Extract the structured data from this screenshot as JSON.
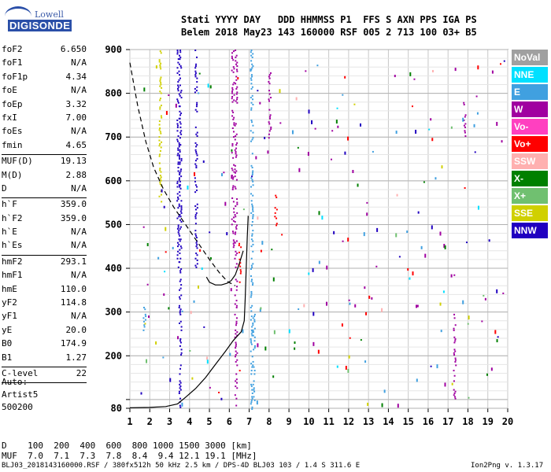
{
  "header": {
    "labels": "Stati YYYY DAY   DDD HHMMSS P1  FFS S AXN PPS IGA PS",
    "values": "Belem 2018 May23 143 160000 RSF 005 2 713 100 03+ B5"
  },
  "logo": {
    "text_top": "Lowell",
    "text_bottom": "DIGISONDE"
  },
  "params": [
    {
      "k": "foF2",
      "v": "6.650"
    },
    {
      "k": "foF1",
      "v": "N/A"
    },
    {
      "k": "foF1p",
      "v": "4.34"
    },
    {
      "k": "foE",
      "v": "N/A"
    },
    {
      "k": "foEp",
      "v": "3.32"
    },
    {
      "k": "fxI",
      "v": "7.00"
    },
    {
      "k": "foEs",
      "v": "N/A"
    },
    {
      "k": "fmin",
      "v": "4.65"
    },
    {
      "k": "MUF(D)",
      "v": "19.13"
    },
    {
      "k": "M(D)",
      "v": "2.88"
    },
    {
      "k": "D",
      "v": "N/A"
    },
    {
      "k": "h`F",
      "v": "359.0"
    },
    {
      "k": "h`F2",
      "v": "359.0"
    },
    {
      "k": "h`E",
      "v": "N/A"
    },
    {
      "k": "h`Es",
      "v": "N/A"
    },
    {
      "k": "hmF2",
      "v": "293.1"
    },
    {
      "k": "hmF1",
      "v": "N/A"
    },
    {
      "k": "hmE",
      "v": "110.0"
    },
    {
      "k": "yF2",
      "v": "114.8"
    },
    {
      "k": "yF1",
      "v": "N/A"
    },
    {
      "k": "yE",
      "v": "20.0"
    },
    {
      "k": "B0",
      "v": "174.9"
    },
    {
      "k": "B1",
      "v": "1.27"
    },
    {
      "k": "C-level",
      "v": "22"
    }
  ],
  "auto": [
    "Auto:",
    "Artist5",
    "500200"
  ],
  "legend": [
    {
      "label": "NoVal",
      "color": "#a0a0a0"
    },
    {
      "label": "NNE",
      "color": "#00e0ff"
    },
    {
      "label": "E",
      "color": "#40a0e0"
    },
    {
      "label": "W",
      "color": "#a000a0"
    },
    {
      "label": "Vo-",
      "color": "#ff40c0"
    },
    {
      "label": "Vo+",
      "color": "#ff0000"
    },
    {
      "label": "SSW",
      "color": "#ffb0b0"
    },
    {
      "label": "X-",
      "color": "#008000"
    },
    {
      "label": "X+",
      "color": "#70c070"
    },
    {
      "label": "SSE",
      "color": "#d0d000"
    },
    {
      "label": "NNW",
      "color": "#2000c0"
    }
  ],
  "chart_data": {
    "type": "scatter",
    "xlabel": "",
    "ylabel": "",
    "xlim": [
      1,
      20
    ],
    "ylim": [
      80,
      900
    ],
    "x_ticks": [
      1,
      2,
      3,
      4,
      5,
      6,
      7,
      8,
      9,
      10,
      11,
      12,
      13,
      14,
      15,
      16,
      17,
      18,
      19,
      20
    ],
    "y_ticks": [
      80,
      100,
      200,
      300,
      400,
      500,
      600,
      700,
      800,
      900
    ],
    "y_tick_labels_shown": [
      80,
      200,
      300,
      400,
      500,
      600,
      700,
      800,
      900
    ],
    "grid": true,
    "curves": [
      {
        "name": "",
        "style": "dashed",
        "points": [
          [
            1.0,
            870
          ],
          [
            1.4,
            770
          ],
          [
            1.8,
            690
          ],
          [
            2.2,
            630
          ],
          [
            2.7,
            580
          ],
          [
            3.2,
            540
          ],
          [
            3.8,
            500
          ],
          [
            4.4,
            460
          ],
          [
            5.0,
            420
          ],
          [
            5.5,
            390
          ],
          [
            5.9,
            370
          ],
          [
            6.3,
            360
          ]
        ]
      },
      {
        "name": "",
        "style": "solid",
        "points": [
          [
            1.0,
            81
          ],
          [
            2.0,
            82
          ],
          [
            2.8,
            84
          ],
          [
            3.4,
            90
          ],
          [
            3.8,
            105
          ],
          [
            4.3,
            125
          ],
          [
            4.8,
            150
          ],
          [
            5.3,
            180
          ],
          [
            5.8,
            210
          ],
          [
            6.2,
            235
          ],
          [
            6.6,
            255
          ],
          [
            6.75,
            280
          ],
          [
            6.8,
            330
          ],
          [
            6.85,
            400
          ],
          [
            6.9,
            470
          ],
          [
            6.95,
            520
          ]
        ]
      },
      {
        "name": "",
        "style": "solid",
        "points": [
          [
            4.85,
            380
          ],
          [
            5.0,
            368
          ],
          [
            5.3,
            362
          ],
          [
            5.6,
            362
          ],
          [
            5.9,
            366
          ],
          [
            6.1,
            372
          ],
          [
            6.3,
            385
          ],
          [
            6.5,
            410
          ],
          [
            6.7,
            440
          ]
        ]
      }
    ],
    "traces": [
      {
        "direction": "NNW",
        "color": "#2000c0",
        "x": 3.5,
        "y_from": 80,
        "y_to": 900
      },
      {
        "direction": "NNW",
        "color": "#2000c0",
        "x": 4.3,
        "y_from": 400,
        "y_to": 900
      },
      {
        "direction": "NNW",
        "color": "#2000c0",
        "x": 3.4,
        "y_from": 400,
        "y_to": 900
      },
      {
        "direction": "W",
        "color": "#a000a0",
        "x": 6.3,
        "y_from": 80,
        "y_to": 900
      },
      {
        "direction": "W",
        "color": "#a000a0",
        "x": 6.15,
        "y_from": 450,
        "y_to": 900
      },
      {
        "direction": "E",
        "color": "#40a0e0",
        "x": 7.1,
        "y_from": 80,
        "y_to": 900
      },
      {
        "direction": "E",
        "color": "#40a0e0",
        "x": 7.2,
        "y_from": 100,
        "y_to": 300
      },
      {
        "direction": "SSE",
        "color": "#d0d000",
        "x": 2.5,
        "y_from": 550,
        "y_to": 900
      },
      {
        "direction": "Vo+",
        "color": "#ff0000",
        "x": 6.5,
        "y_from": 370,
        "y_to": 460
      },
      {
        "direction": "W",
        "color": "#a000a0",
        "x": 8.0,
        "y_from": 700,
        "y_to": 850
      },
      {
        "direction": "Vo+",
        "color": "#ff0000",
        "x": 8.3,
        "y_from": 500,
        "y_to": 570
      },
      {
        "direction": "W",
        "color": "#a000a0",
        "x": 17.3,
        "y_from": 100,
        "y_to": 300
      },
      {
        "direction": "W",
        "color": "#a000a0",
        "x": 17.8,
        "y_from": 700,
        "y_to": 780
      },
      {
        "direction": "E",
        "color": "#40a0e0",
        "x": 1.7,
        "y_from": 260,
        "y_to": 330
      }
    ]
  },
  "bottom": {
    "d_line": "D    100  200  400  600  800 1000 1500 3000 [km]",
    "muf_line": "MUF  7.0  7.1  7.3  7.8  8.4  9.4 12.1 19.1 [MHz]"
  },
  "footer": {
    "left": "BLJ03_2018143160000.RSF / 380fx512h 50 kHz 2.5 km / DPS-4D BLJ03 103 / 1.4 S 311.6 E",
    "right": "Ion2Png v. 1.3.17"
  }
}
